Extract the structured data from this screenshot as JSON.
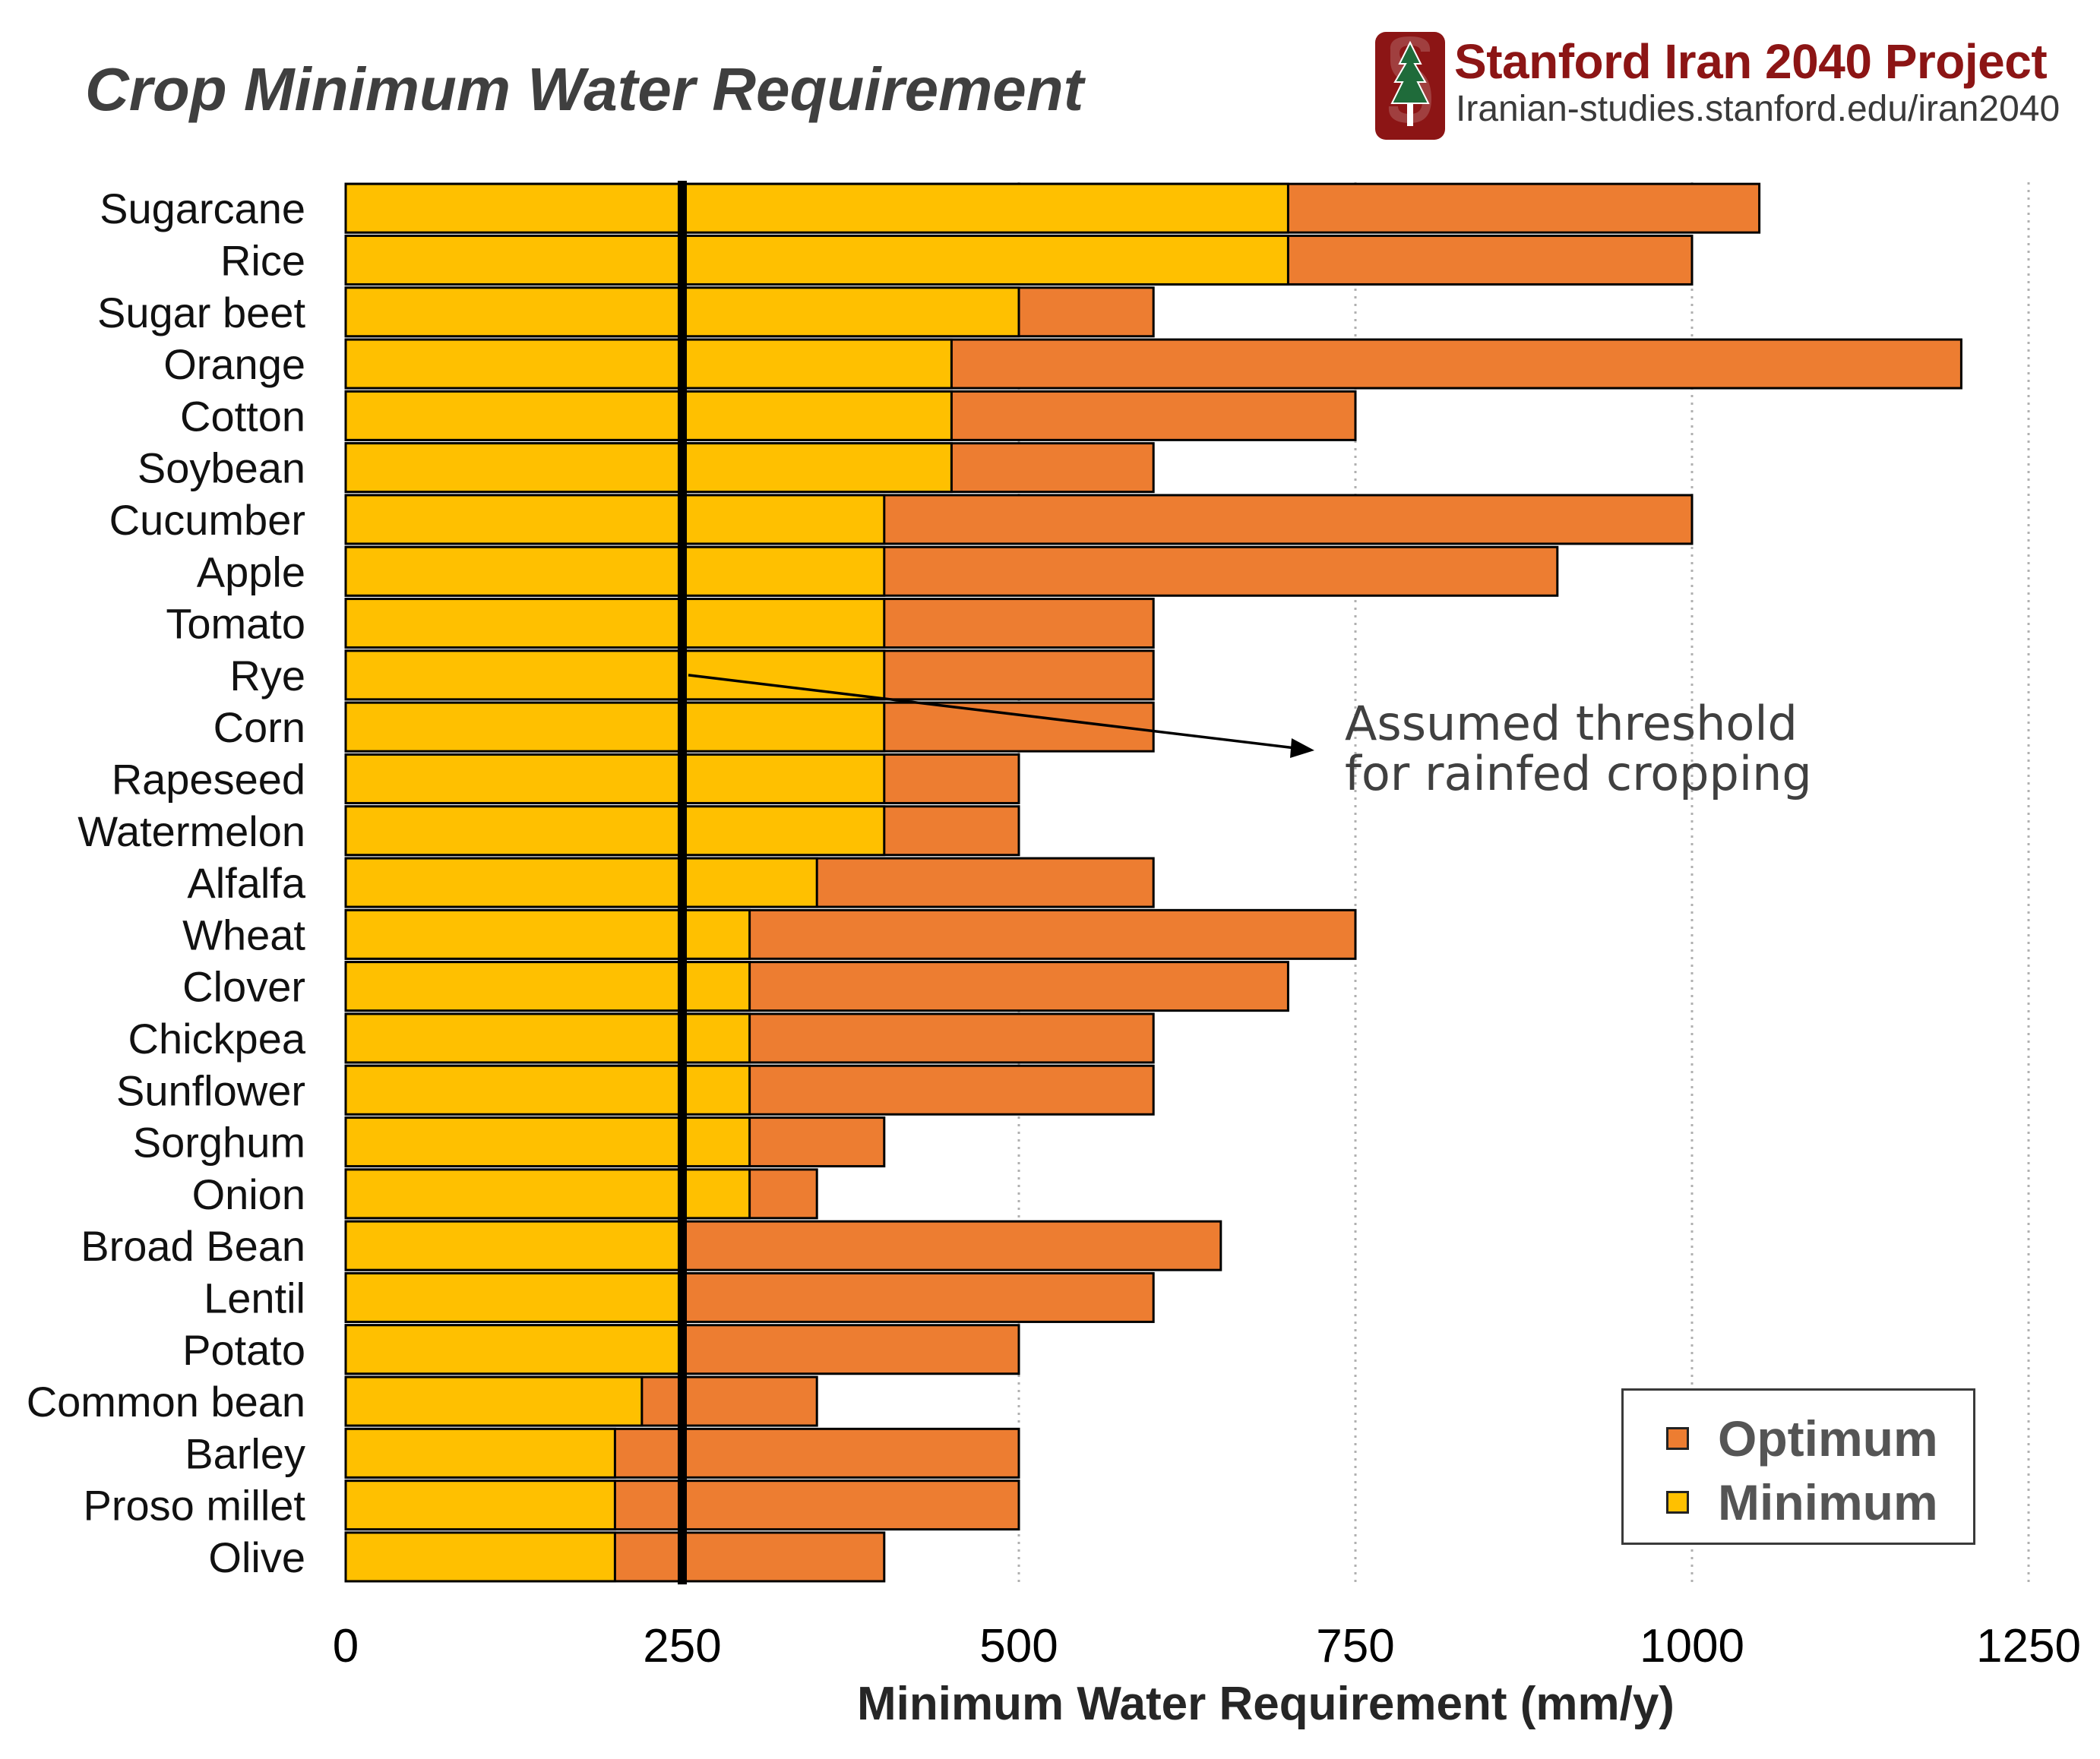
{
  "header": {
    "title": "Crop Minimum Water Requirement",
    "brand_name": "Stanford Iran 2040 Project",
    "brand_url": "Iranian-studies.stanford.edu/iran2040",
    "logo_icon": "stanford-tree-logo-icon"
  },
  "annotation": {
    "line1": "Assumed threshold",
    "line2": "for rainfed cropping"
  },
  "legend": {
    "optimum_label": "Optimum",
    "minimum_label": "Minimum"
  },
  "colors": {
    "minimum": "#ffc000",
    "optimum": "#ed7d31",
    "threshold": "#000000",
    "brand": "#8c1515"
  },
  "chart_data": {
    "type": "bar",
    "orientation": "horizontal",
    "title": "Crop Minimum Water Requirement",
    "xlabel": "Minimum  Water Requirement (mm/y)",
    "ylabel": "",
    "xlim": [
      0,
      1250
    ],
    "xticks": [
      0,
      250,
      500,
      750,
      1000,
      1250
    ],
    "grid": "vertical dotted",
    "legend_position": "bottom-right",
    "threshold": {
      "value": 250,
      "label": "Assumed threshold for rainfed cropping"
    },
    "categories": [
      "Sugarcane",
      "Rice",
      "Sugar beet",
      "Orange",
      "Cotton",
      "Soybean",
      "Cucumber",
      "Apple",
      "Tomato",
      "Rye",
      "Corn",
      "Rapeseed",
      "Watermelon",
      "Alfalfa",
      "Wheat",
      "Clover",
      "Chickpea",
      "Sunflower",
      "Sorghum",
      "Onion",
      "Broad Bean",
      "Lentil",
      "Potato",
      "Common bean",
      "Barley",
      "Proso millet",
      "Olive"
    ],
    "series": [
      {
        "name": "Minimum",
        "values": [
          700,
          700,
          500,
          450,
          450,
          450,
          400,
          400,
          400,
          400,
          400,
          400,
          400,
          350,
          300,
          300,
          300,
          300,
          300,
          300,
          250,
          250,
          250,
          220,
          200,
          200,
          200
        ]
      },
      {
        "name": "Optimum",
        "values": [
          1050,
          1000,
          600,
          1200,
          750,
          600,
          1000,
          900,
          600,
          600,
          600,
          500,
          500,
          600,
          750,
          700,
          600,
          600,
          400,
          350,
          650,
          600,
          500,
          350,
          500,
          500,
          400
        ]
      }
    ]
  }
}
